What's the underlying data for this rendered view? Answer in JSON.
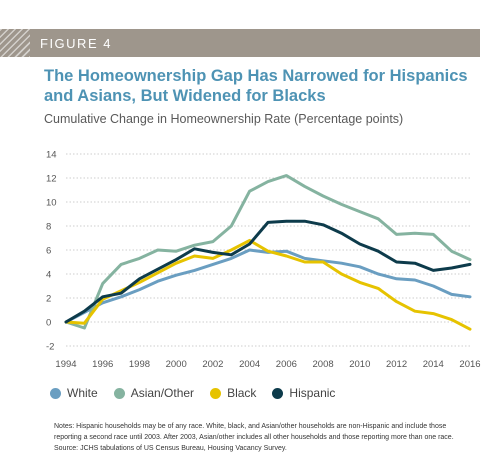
{
  "figure": {
    "label": "FIGURE 4"
  },
  "colors": {
    "banner": "#9e968c",
    "accent": "#4e93b4",
    "grid": "#bfbfbf"
  },
  "chart_data": {
    "type": "line",
    "title": "The Homeownership Gap Has Narrowed for Hispanics and Asians, But Widened for Blacks",
    "subtitle": "Cumulative Change in Homeownership Rate (Percentage points)",
    "xlabel": "",
    "ylabel": "",
    "xlim": [
      1994,
      2016
    ],
    "ylim": [
      -2,
      14
    ],
    "yticks": [
      -2,
      0,
      2,
      4,
      6,
      8,
      10,
      12,
      14
    ],
    "xticks": [
      1994,
      1996,
      1998,
      2000,
      2002,
      2004,
      2006,
      2008,
      2010,
      2012,
      2014,
      2016
    ],
    "grid": "horizontal-dotted",
    "legend_position": "bottom",
    "x": [
      1994,
      1995,
      1996,
      1997,
      1998,
      1999,
      2000,
      2001,
      2002,
      2003,
      2004,
      2005,
      2006,
      2007,
      2008,
      2009,
      2010,
      2011,
      2012,
      2013,
      2014,
      2015,
      2016
    ],
    "series": [
      {
        "name": "White",
        "color": "#6a9ec1",
        "values": [
          0,
          0.8,
          1.6,
          2.1,
          2.7,
          3.4,
          3.9,
          4.3,
          4.8,
          5.3,
          6.0,
          5.8,
          5.9,
          5.3,
          5.1,
          4.9,
          4.6,
          4.0,
          3.6,
          3.5,
          3.0,
          2.3,
          2.1
        ]
      },
      {
        "name": "Asian/Other",
        "color": "#85b3a0",
        "values": [
          0,
          -0.5,
          3.2,
          4.8,
          5.3,
          6.0,
          5.9,
          6.4,
          6.7,
          8.0,
          10.9,
          11.7,
          12.2,
          11.3,
          10.5,
          9.8,
          9.2,
          8.6,
          7.3,
          7.4,
          7.3,
          5.9,
          5.2
        ]
      },
      {
        "name": "Black",
        "color": "#e6c300",
        "values": [
          0,
          -0.1,
          1.9,
          2.6,
          3.3,
          4.1,
          4.9,
          5.5,
          5.3,
          6.0,
          6.8,
          5.9,
          5.5,
          5.0,
          5.0,
          4.0,
          3.3,
          2.8,
          1.7,
          0.9,
          0.7,
          0.2,
          -0.6
        ]
      },
      {
        "name": "Hispanic",
        "color": "#0d3b4b",
        "values": [
          0,
          0.9,
          2.1,
          2.4,
          3.6,
          4.4,
          5.2,
          6.1,
          5.8,
          5.6,
          6.5,
          8.3,
          8.4,
          8.4,
          8.1,
          7.4,
          6.5,
          5.9,
          5.0,
          4.9,
          4.3,
          4.5,
          4.8
        ]
      }
    ]
  },
  "notes": {
    "line1": "Notes: Hispanic households may be of any race. White, black, and Asian/other households are non-Hispanic and include those reporting a second race until 2003. After 2003, Asian/other includes all other households and those reporting more than one race.",
    "line2": "Source: JCHS tabulations of US Census Bureau, Housing Vacancy Survey."
  }
}
